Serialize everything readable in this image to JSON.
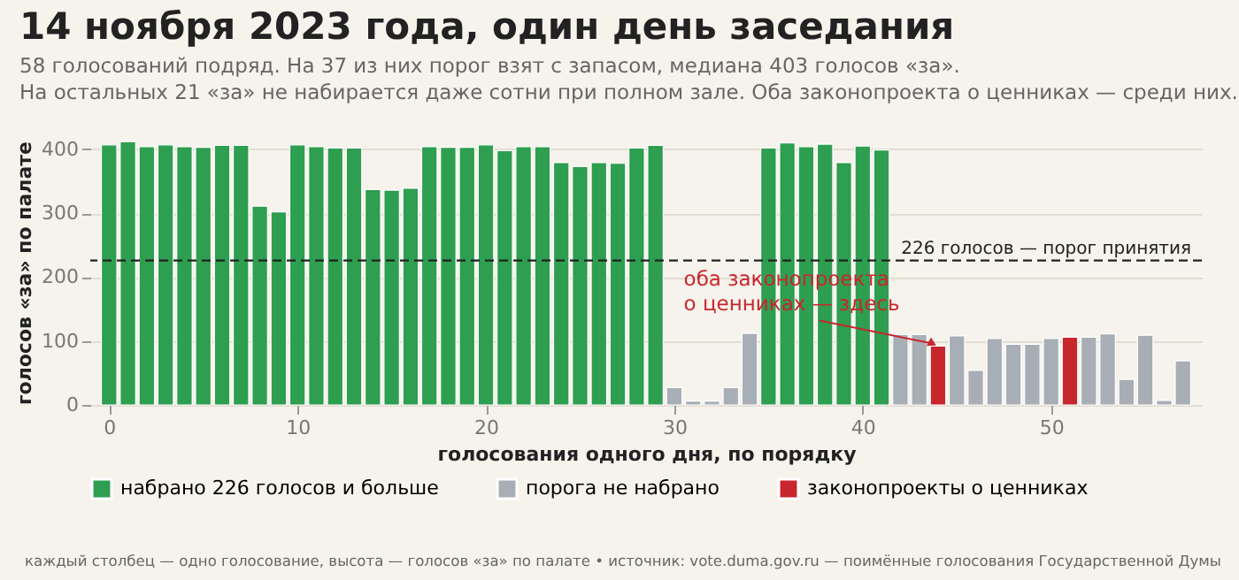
{
  "chart_data": {
    "type": "bar",
    "title": "14 ноября 2023 года, один день заседания",
    "subtitle": "58 голосований подряд. На 37 из них порог взят с запасом, медиана 403 голосов «за».\nНа остальных 21 «за» не набирается даже сотни при полном зале. Оба законопроекта о ценниках — среди них.",
    "xlabel": "голосования одного дня, по порядку",
    "ylabel": "голосов «за» по палате",
    "x": [
      0,
      1,
      2,
      3,
      4,
      5,
      6,
      7,
      8,
      9,
      10,
      11,
      12,
      13,
      14,
      15,
      16,
      17,
      18,
      19,
      20,
      21,
      22,
      23,
      24,
      25,
      26,
      27,
      28,
      29,
      30,
      31,
      32,
      33,
      34,
      35,
      36,
      37,
      38,
      39,
      40,
      41,
      42,
      43,
      44,
      45,
      46,
      47,
      48,
      49,
      50,
      51,
      52,
      53,
      54,
      55,
      56,
      57
    ],
    "series": [
      {
        "name": "набрано 226 голосов и больше",
        "color": "#2e9e50",
        "values": [
          407,
          412,
          404,
          407,
          404,
          403,
          406,
          406,
          311,
          302,
          407,
          404,
          402,
          402,
          337,
          336,
          339,
          404,
          403,
          403,
          407,
          398,
          404,
          404,
          379,
          373,
          379,
          378,
          402,
          406,
          null,
          null,
          null,
          null,
          null,
          402,
          410,
          404,
          408,
          379,
          405,
          399,
          null,
          null,
          null,
          null,
          null,
          null,
          null,
          null,
          null,
          null,
          null,
          null,
          null,
          null,
          null,
          null
        ]
      },
      {
        "name": "порога не набрано",
        "color": "#a8aeb5",
        "values": [
          null,
          null,
          null,
          null,
          null,
          null,
          null,
          null,
          null,
          null,
          null,
          null,
          null,
          null,
          null,
          null,
          null,
          null,
          null,
          null,
          null,
          null,
          null,
          null,
          null,
          null,
          null,
          null,
          null,
          null,
          27,
          6,
          6,
          27,
          112,
          null,
          null,
          null,
          null,
          null,
          null,
          null,
          110,
          110,
          null,
          108,
          54,
          104,
          95,
          95,
          104,
          null,
          106,
          111,
          40,
          109,
          7,
          69
        ]
      },
      {
        "name": "законопроекты о ценниках",
        "color": "#c8262d",
        "values": [
          null,
          null,
          null,
          null,
          null,
          null,
          null,
          null,
          null,
          null,
          null,
          null,
          null,
          null,
          null,
          null,
          null,
          null,
          null,
          null,
          null,
          null,
          null,
          null,
          null,
          null,
          null,
          null,
          null,
          null,
          null,
          null,
          null,
          null,
          null,
          null,
          null,
          null,
          null,
          null,
          null,
          null,
          null,
          null,
          92,
          null,
          null,
          null,
          null,
          null,
          null,
          106,
          null,
          null,
          null,
          null,
          null,
          null
        ]
      }
    ],
    "xlim": [
      -1,
      58
    ],
    "xticks": [
      0,
      10,
      20,
      30,
      40,
      50
    ],
    "ylim": [
      0,
      415
    ],
    "yticks": [
      0,
      100,
      200,
      300,
      400
    ],
    "grid": "y",
    "legend": "bottom",
    "ref_lines": [
      {
        "axis": "y",
        "value": 226,
        "label": "226 голосов — порог принятия",
        "color": "#222222",
        "line_style": "dashed"
      }
    ],
    "annotations": [
      {
        "text": "оба законопроекта\nо ценниках — здесь",
        "x": 44,
        "y": 92
      },
      "каждый столбец — одно голосование, высота — голосов «за» по палате • источник: vote.duma.gov.ru — поимённые голосования Государственной Думы"
    ]
  }
}
